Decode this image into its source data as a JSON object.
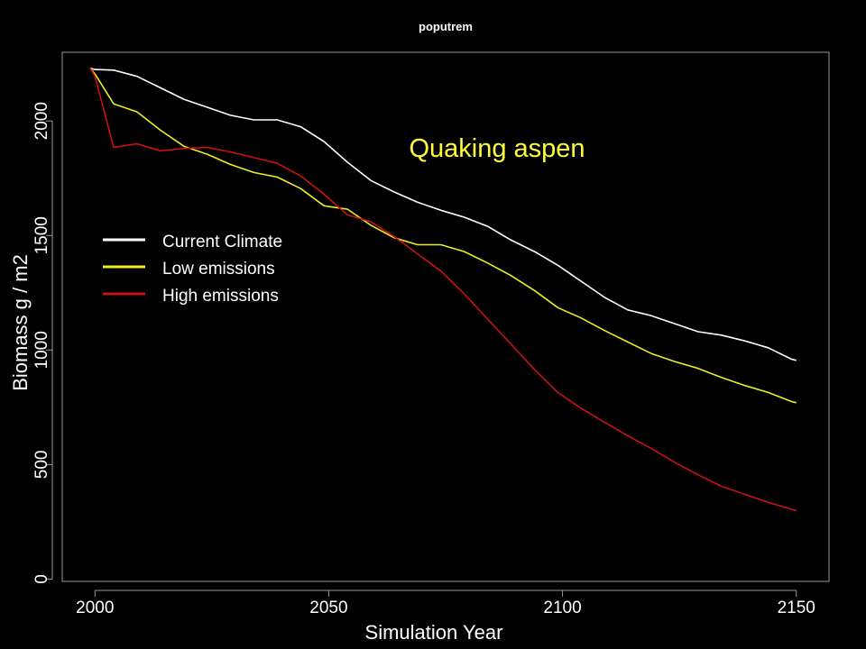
{
  "chart_data": {
    "type": "line",
    "title": "poputrem",
    "annotation": "Quaking aspen",
    "xlabel": "Simulation Year",
    "ylabel": "Biomass g / m2",
    "xlim": [
      1993,
      2157
    ],
    "ylim": [
      -10,
      2300
    ],
    "xticks": [
      2000,
      2050,
      2100,
      2150
    ],
    "yticks": [
      0,
      500,
      1000,
      1500,
      2000
    ],
    "grid": false,
    "legend_position": "left",
    "colors": {
      "background": "#000000",
      "axes": "#9a9a9a",
      "text": "#ffffff",
      "annotation": "#ffff33"
    },
    "x": [
      1999,
      2000,
      2004,
      2009,
      2014,
      2019,
      2024,
      2029,
      2034,
      2039,
      2044,
      2049,
      2054,
      2059,
      2064,
      2069,
      2074,
      2079,
      2084,
      2089,
      2094,
      2099,
      2104,
      2109,
      2114,
      2119,
      2124,
      2129,
      2134,
      2139,
      2144,
      2149,
      2150
    ],
    "series": [
      {
        "name": "Current Climate",
        "color": "#ffffff",
        "values": [
          2230,
          2225,
          2222,
          2195,
          2145,
          2095,
          2060,
          2025,
          2005,
          2005,
          1975,
          1910,
          1820,
          1740,
          1690,
          1645,
          1610,
          1580,
          1540,
          1480,
          1430,
          1370,
          1300,
          1230,
          1175,
          1150,
          1115,
          1080,
          1065,
          1040,
          1010,
          960,
          955
        ]
      },
      {
        "name": "Low emissions",
        "color": "#eeee22",
        "values": [
          2230,
          2205,
          2075,
          2040,
          1960,
          1890,
          1855,
          1810,
          1775,
          1755,
          1705,
          1630,
          1615,
          1545,
          1490,
          1460,
          1460,
          1430,
          1380,
          1325,
          1260,
          1185,
          1140,
          1085,
          1035,
          985,
          950,
          920,
          880,
          845,
          815,
          775,
          770
        ]
      },
      {
        "name": "High emissions",
        "color": "#cc1111",
        "values": [
          2230,
          2195,
          1885,
          1900,
          1870,
          1880,
          1885,
          1865,
          1840,
          1815,
          1760,
          1680,
          1590,
          1560,
          1495,
          1420,
          1345,
          1245,
          1135,
          1025,
          915,
          815,
          745,
          685,
          625,
          570,
          510,
          455,
          405,
          370,
          335,
          305,
          300
        ]
      }
    ]
  }
}
